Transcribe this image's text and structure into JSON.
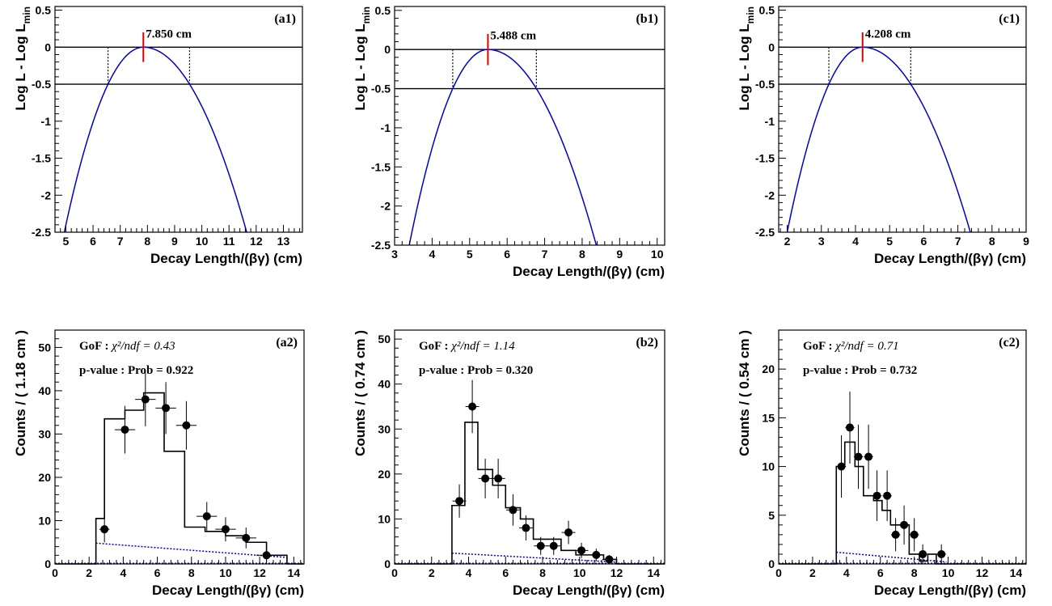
{
  "chart_data": [
    {
      "id": "a1",
      "type": "line",
      "panel_label": "(a1)",
      "xlabel": "Decay Length/(βγ) (cm)",
      "ylabel": "Log L - Log L",
      "ylabel_sub": "min",
      "xlim": [
        4.6,
        13.7
      ],
      "ylim": [
        -2.5,
        0.55
      ],
      "xticks": [
        5,
        6,
        7,
        8,
        9,
        10,
        11,
        12,
        13
      ],
      "yticks": [
        0.5,
        0,
        -0.5,
        -1,
        -1.5,
        -2,
        -2.5
      ],
      "curve": {
        "peak": 7.85,
        "lo": 6.55,
        "hi": 9.55
      },
      "hlines": [
        0,
        -0.5
      ],
      "annotation": "7.850 cm",
      "line_color": "#0000cc",
      "marker_color": "#dd0000"
    },
    {
      "id": "b1",
      "type": "line",
      "panel_label": "(b1)",
      "xlabel": "Decay Length/(βγ) (cm)",
      "ylabel": "Log L - Log L",
      "ylabel_sub": "min",
      "xlim": [
        3,
        10.2
      ],
      "ylim": [
        -2.5,
        0.55
      ],
      "xticks": [
        3,
        4,
        5,
        6,
        7,
        8,
        9,
        10
      ],
      "yticks": [
        0.5,
        0,
        -0.5,
        -1,
        -1.5,
        -2,
        -2.5
      ],
      "curve": {
        "peak": 5.488,
        "lo": 4.55,
        "hi": 6.78
      },
      "hlines": [
        0,
        -0.5
      ],
      "annotation": "5.488 cm",
      "line_color": "#0000cc",
      "marker_color": "#dd0000"
    },
    {
      "id": "c1",
      "type": "line",
      "panel_label": "(c1)",
      "xlabel": "Decay Length/(βγ) (cm)",
      "ylabel": "Log L - Log L",
      "ylabel_sub": "min",
      "xlim": [
        1.75,
        9
      ],
      "ylim": [
        -2.5,
        0.55
      ],
      "xticks": [
        2,
        3,
        4,
        5,
        6,
        7,
        8,
        9
      ],
      "yticks": [
        0.5,
        0,
        -0.5,
        -1,
        -1.5,
        -2,
        -2.5
      ],
      "curve": {
        "peak": 4.208,
        "lo": 3.22,
        "hi": 5.62
      },
      "hlines": [
        0,
        -0.5
      ],
      "annotation": "4.208 cm",
      "line_color": "#0000cc",
      "marker_color": "#dd0000"
    },
    {
      "id": "a2",
      "type": "histogram",
      "panel_label": "(a2)",
      "xlabel": "Decay Length/(βγ) (cm)",
      "ylabel": "Counts / ( 1.18 cm )",
      "xlim": [
        0,
        14.6
      ],
      "ylim": [
        0,
        54
      ],
      "xticks": [
        0,
        2,
        4,
        6,
        8,
        10,
        12,
        14
      ],
      "yticks": [
        0,
        10,
        20,
        30,
        40,
        50
      ],
      "gof_label": "GoF : ",
      "gof_expr": "χ²/ndf = 0.43",
      "pvalue_text": "p-value : Prob = 0.922",
      "bin_edges": [
        0,
        2.4,
        2.9,
        4.1,
        5.2,
        6.4,
        7.6,
        8.8,
        10.0,
        11.2,
        12.4,
        13.6,
        14.6
      ],
      "fit_heights": [
        0,
        10.5,
        33.5,
        35.5,
        39.5,
        26,
        8.5,
        7.5,
        6.5,
        5,
        2,
        0
      ],
      "points": [
        {
          "x": 2.9,
          "y": 8,
          "xerr": 0.3,
          "yerr": 3
        },
        {
          "x": 4.1,
          "y": 31,
          "xerr": 0.6,
          "yerr": 5.5
        },
        {
          "x": 5.3,
          "y": 38,
          "xerr": 0.6,
          "yerr": 6.2
        },
        {
          "x": 6.5,
          "y": 36,
          "xerr": 0.6,
          "yerr": 6
        },
        {
          "x": 7.7,
          "y": 32,
          "xerr": 0.6,
          "yerr": 5.6
        },
        {
          "x": 8.9,
          "y": 11,
          "xerr": 0.6,
          "yerr": 3.3
        },
        {
          "x": 10.0,
          "y": 8,
          "xerr": 0.6,
          "yerr": 2.8
        },
        {
          "x": 11.2,
          "y": 6,
          "xerr": 0.6,
          "yerr": 2.4
        },
        {
          "x": 12.4,
          "y": 2,
          "xerr": 0.6,
          "yerr": 1.4
        }
      ],
      "bkg_line": {
        "x": [
          2.4,
          13.6
        ],
        "y": [
          4.8,
          1.5
        ]
      },
      "hist_color": "#000000",
      "bkg_color": "#0000cc"
    },
    {
      "id": "b2",
      "type": "histogram",
      "panel_label": "(b2)",
      "xlabel": "Decay Length/(βγ) (cm)",
      "ylabel": "Counts / ( 0.74 cm )",
      "xlim": [
        0,
        14.6
      ],
      "ylim": [
        0,
        52
      ],
      "xticks": [
        0,
        2,
        4,
        6,
        8,
        10,
        12,
        14
      ],
      "yticks": [
        0,
        10,
        20,
        30,
        40,
        50
      ],
      "gof_label": "GoF : ",
      "gof_expr": "χ²/ndf = 1.14",
      "pvalue_text": "p-value : Prob = 0.320",
      "bin_edges": [
        0,
        3.1,
        3.8,
        4.5,
        5.3,
        6.0,
        6.8,
        7.5,
        8.3,
        9.0,
        9.8,
        10.5,
        11.3,
        12.0,
        14.6
      ],
      "fit_heights": [
        0,
        13,
        31.5,
        21,
        17.5,
        12.5,
        10,
        5.5,
        5.5,
        3,
        2,
        2,
        1,
        0
      ],
      "points": [
        {
          "x": 3.5,
          "y": 14,
          "xerr": 0.37,
          "yerr": 3.7
        },
        {
          "x": 4.2,
          "y": 35,
          "xerr": 0.37,
          "yerr": 5.9
        },
        {
          "x": 4.9,
          "y": 19,
          "xerr": 0.37,
          "yerr": 4.4
        },
        {
          "x": 5.6,
          "y": 19,
          "xerr": 0.37,
          "yerr": 4.4
        },
        {
          "x": 6.4,
          "y": 12,
          "xerr": 0.37,
          "yerr": 3.5
        },
        {
          "x": 7.1,
          "y": 8,
          "xerr": 0.37,
          "yerr": 2.8
        },
        {
          "x": 7.9,
          "y": 4,
          "xerr": 0.37,
          "yerr": 2
        },
        {
          "x": 8.6,
          "y": 4,
          "xerr": 0.37,
          "yerr": 2
        },
        {
          "x": 9.4,
          "y": 7,
          "xerr": 0.37,
          "yerr": 2.6
        },
        {
          "x": 10.1,
          "y": 3,
          "xerr": 0.37,
          "yerr": 1.7
        },
        {
          "x": 10.9,
          "y": 2,
          "xerr": 0.37,
          "yerr": 1.4
        },
        {
          "x": 11.6,
          "y": 1,
          "xerr": 0.37,
          "yerr": 1
        }
      ],
      "bkg_line": {
        "x": [
          3.1,
          12.0
        ],
        "y": [
          2.4,
          0.4
        ]
      },
      "hist_color": "#000000",
      "bkg_color": "#0000cc"
    },
    {
      "id": "c2",
      "type": "histogram",
      "panel_label": "(c2)",
      "xlabel": "Decay Length/(βγ) (cm)",
      "ylabel": "Counts / ( 0.54 cm )",
      "xlim": [
        0,
        14.6
      ],
      "ylim": [
        0,
        24
      ],
      "xticks": [
        0,
        2,
        4,
        6,
        8,
        10,
        12,
        14
      ],
      "yticks": [
        0,
        5,
        10,
        15,
        20
      ],
      "gof_label": "GoF : ",
      "gof_expr": "χ²/ndf = 0.71",
      "pvalue_text": "p-value : Prob = 0.732",
      "bin_edges": [
        0,
        3.4,
        3.9,
        4.5,
        5.0,
        5.6,
        6.1,
        6.6,
        7.2,
        7.7,
        8.3,
        8.8,
        9.3,
        9.9,
        14.6
      ],
      "fit_heights": [
        0,
        10,
        12.5,
        10,
        7,
        6.5,
        5.5,
        4,
        4,
        1,
        0.3,
        1,
        0,
        0
      ],
      "points": [
        {
          "x": 3.7,
          "y": 10,
          "xerr": 0.27,
          "yerr": 3.2
        },
        {
          "x": 4.2,
          "y": 14,
          "xerr": 0.27,
          "yerr": 3.7
        },
        {
          "x": 4.7,
          "y": 11,
          "xerr": 0.27,
          "yerr": 3.3
        },
        {
          "x": 5.3,
          "y": 11,
          "xerr": 0.27,
          "yerr": 3.3
        },
        {
          "x": 5.8,
          "y": 7,
          "xerr": 0.27,
          "yerr": 2.6
        },
        {
          "x": 6.4,
          "y": 7,
          "xerr": 0.27,
          "yerr": 2.6
        },
        {
          "x": 6.9,
          "y": 3,
          "xerr": 0.27,
          "yerr": 1.7
        },
        {
          "x": 7.4,
          "y": 4,
          "xerr": 0.27,
          "yerr": 2
        },
        {
          "x": 8.0,
          "y": 3,
          "xerr": 0.27,
          "yerr": 1.7
        },
        {
          "x": 8.5,
          "y": 1,
          "xerr": 0.27,
          "yerr": 1
        },
        {
          "x": 9.6,
          "y": 1,
          "xerr": 0.27,
          "yerr": 1
        }
      ],
      "bkg_line": {
        "x": [
          3.4,
          9.9
        ],
        "y": [
          1.2,
          0.2
        ]
      },
      "hist_color": "#000000",
      "bkg_color": "#0000cc"
    }
  ]
}
